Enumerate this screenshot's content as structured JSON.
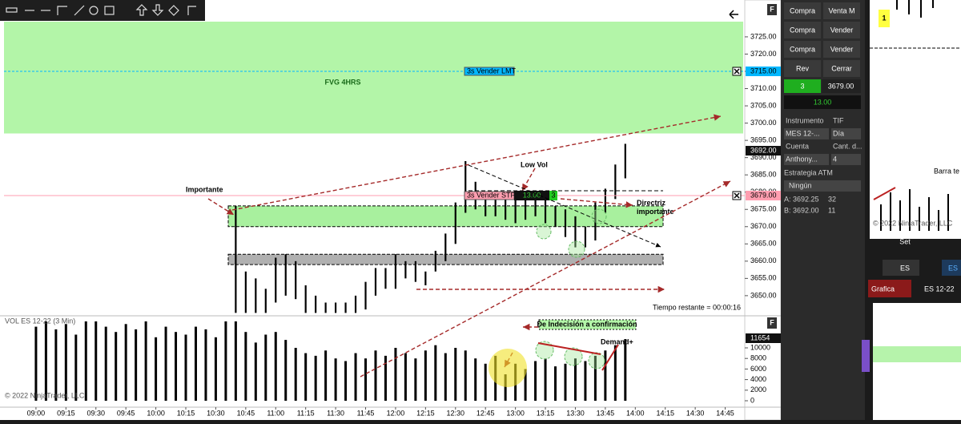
{
  "chart_data": [
    {
      "type": "range-bar",
      "x": [
        "10:40",
        "10:45",
        "10:50",
        "10:55",
        "11:00",
        "11:05",
        "11:10",
        "11:15",
        "11:20",
        "11:25",
        "11:30",
        "11:35",
        "11:40",
        "11:45",
        "11:50",
        "11:55",
        "12:00",
        "12:05",
        "12:10",
        "12:15",
        "12:20",
        "12:25",
        "12:30",
        "12:35",
        "12:40",
        "12:45",
        "12:50",
        "12:55",
        "13:00",
        "13:05",
        "13:10",
        "13:15",
        "13:20",
        "13:25",
        "13:30",
        "13:35",
        "13:40",
        "13:45",
        "13:50",
        "13:55"
      ],
      "high": [
        3676,
        3657,
        3655,
        3652,
        3661,
        3662,
        3660,
        3653,
        3650,
        3648,
        3648,
        3648,
        3650,
        3654,
        3658,
        3658,
        3662,
        3660,
        3660,
        3657,
        3663,
        3668,
        3677,
        3689,
        3683,
        3680,
        3679,
        3678,
        3679,
        3680,
        3679,
        3678,
        3676,
        3675,
        3673,
        3670,
        3677,
        3681,
        3688,
        3694
      ],
      "low": [
        3645,
        3645,
        3645,
        3645,
        3648,
        3650,
        3649,
        3645,
        3645,
        3645,
        3645,
        3645,
        3645,
        3646,
        3650,
        3652,
        3652,
        3655,
        3654,
        3653,
        3657,
        3660,
        3665,
        3674,
        3675,
        3673,
        3673,
        3672,
        3671,
        3672,
        3673,
        3671,
        3670,
        3667,
        3664,
        3664,
        3666,
        3674,
        3678,
        3684
      ],
      "color": "#000000",
      "ylim": [
        3644.4,
        3729.4
      ],
      "yticks": [
        {
          "value": 3725,
          "label": "3725.00"
        },
        {
          "value": 3720,
          "label": "3720.00"
        },
        {
          "value": 3715,
          "label": "3715.00"
        },
        {
          "value": 3710,
          "label": "3710.00"
        },
        {
          "value": 3705,
          "label": "3705.00"
        },
        {
          "value": 3700,
          "label": "3700.00"
        },
        {
          "value": 3695,
          "label": "3695.00"
        },
        {
          "value": 3690,
          "label": "3690.00"
        },
        {
          "value": 3685,
          "label": "3685.00"
        },
        {
          "value": 3680,
          "label": "3680.00"
        },
        {
          "value": 3675,
          "label": "3675.00"
        },
        {
          "value": 3670,
          "label": "3670.00"
        },
        {
          "value": 3665,
          "label": "3665.00"
        },
        {
          "value": 3660,
          "label": "3660.00"
        },
        {
          "value": 3655,
          "label": "3655.00"
        },
        {
          "value": 3650,
          "label": "3650.00"
        }
      ],
      "xlim": [
        "08:44",
        "14:54"
      ],
      "zones": [
        {
          "label": "FVG 4HRS",
          "from": 3697,
          "to": 3729.4,
          "color": "#b3f5a8"
        },
        {
          "from": 3670,
          "to": 3676,
          "color": "#a8f09e"
        },
        {
          "from": 3659,
          "to": 3662,
          "color": "#b0b0b0"
        }
      ],
      "orders": [
        {
          "label": "3s  Vender LMT",
          "value": 3715,
          "price_label": "3715.00",
          "color": "#00b7ff"
        },
        {
          "label": "3s  Vender STP",
          "value": 3679,
          "price_label": "3679.00",
          "qty": "13.00",
          "count": "3",
          "color": "#ff9eb0"
        }
      ],
      "last_price": {
        "value": 3692,
        "label": "3692.00"
      },
      "annotations": [
        "Importante",
        "Low Vol",
        "Directriz importante",
        "Tiempo restante = 00:00:16"
      ],
      "panel_label": "F"
    },
    {
      "type": "bar",
      "title": "VOL ES 12-22 (3 Min)",
      "x": [
        "09:00",
        "09:05",
        "09:10",
        "09:15",
        "09:20",
        "09:25",
        "09:30",
        "09:35",
        "09:40",
        "09:45",
        "09:50",
        "09:55",
        "10:00",
        "10:05",
        "10:10",
        "10:15",
        "10:20",
        "10:25",
        "10:30",
        "10:35",
        "10:40",
        "10:45",
        "10:50",
        "10:55",
        "11:00",
        "11:05",
        "11:10",
        "11:15",
        "11:20",
        "11:25",
        "11:30",
        "11:35",
        "11:40",
        "11:45",
        "11:50",
        "11:55",
        "12:00",
        "12:05",
        "12:10",
        "12:15",
        "12:20",
        "12:25",
        "12:30",
        "12:35",
        "12:40",
        "12:45",
        "12:50",
        "12:55",
        "13:00",
        "13:05",
        "13:10",
        "13:15",
        "13:20",
        "13:25",
        "13:30",
        "13:35",
        "13:40",
        "13:45",
        "13:50",
        "13:55"
      ],
      "values": [
        14000,
        15000,
        13500,
        14500,
        12500,
        15000,
        15000,
        14000,
        13000,
        14500,
        13500,
        15000,
        12000,
        14000,
        13000,
        12500,
        14000,
        13500,
        12000,
        15000,
        15000,
        13000,
        11000,
        12500,
        13000,
        11500,
        10000,
        9000,
        8500,
        9500,
        8000,
        7500,
        9000,
        8000,
        9500,
        8500,
        10000,
        9000,
        8000,
        9500,
        10500,
        9000,
        10000,
        9500,
        8000,
        7000,
        8500,
        5000,
        7000,
        6000,
        7500,
        8000,
        6500,
        7000,
        8000,
        7500,
        8500,
        9500,
        10500,
        11654
      ],
      "color": "#000000",
      "ylim": [
        0,
        15150
      ],
      "yticks": [
        0,
        2000,
        4000,
        6000,
        8000,
        10000
      ],
      "xlim": [
        "08:44",
        "14:54"
      ],
      "xticks": [
        {
          "value": "09:00",
          "label": "09:00"
        },
        {
          "value": "09:15",
          "label": "09:15"
        },
        {
          "value": "09:30",
          "label": "09:30"
        },
        {
          "value": "09:45",
          "label": "09:45"
        },
        {
          "value": "10:00",
          "label": "10:00"
        },
        {
          "value": "10:15",
          "label": "10:15"
        },
        {
          "value": "10:30",
          "label": "10:30"
        },
        {
          "value": "10:45",
          "label": "10:45"
        },
        {
          "value": "11:00",
          "label": "11:00"
        },
        {
          "value": "11:15",
          "label": "11:15"
        },
        {
          "value": "11:30",
          "label": "11:30"
        },
        {
          "value": "11:45",
          "label": "11:45"
        },
        {
          "value": "12:00",
          "label": "12:00"
        },
        {
          "value": "12:15",
          "label": "12:15"
        },
        {
          "value": "12:30",
          "label": "12:30"
        },
        {
          "value": "12:45",
          "label": "12:45"
        },
        {
          "value": "13:00",
          "label": "13:00"
        },
        {
          "value": "13:15",
          "label": "13:15"
        },
        {
          "value": "13:30",
          "label": "13:30"
        },
        {
          "value": "13:45",
          "label": "13:45"
        },
        {
          "value": "14:00",
          "label": "14:00"
        },
        {
          "value": "14:15",
          "label": "14:15"
        },
        {
          "value": "14:30",
          "label": "14:30"
        },
        {
          "value": "14:45",
          "label": "14:45"
        }
      ],
      "annotations": [
        "De Indecisión a confirmación",
        "Demand+"
      ],
      "copyright": "© 2022 NinjaTrader, LLC",
      "panel_label": "F"
    }
  ],
  "order_panel": {
    "buttons": [
      "Compra",
      "Venta M",
      "Compra",
      "Vender",
      "Compra",
      "Vender",
      "Rev",
      "Cerrar"
    ],
    "qty": "3",
    "price": "3679.00",
    "pnl": "13.00",
    "fields": [
      [
        "Instrumento",
        "TIF"
      ],
      [
        "MES 12-...",
        "Día"
      ],
      [
        "Cuenta",
        "Cant. d..."
      ],
      [
        "Anthony...",
        "4"
      ]
    ],
    "atm_label": "Estrategia ATM",
    "atm_value": "Ningún",
    "ask": [
      "A:",
      "3692.25",
      "32"
    ],
    "bid": [
      "B:",
      "3692.00",
      "11"
    ]
  },
  "side_chart": {
    "badge": "1",
    "label": "Barra te",
    "axis": "Set",
    "copyright": "© 2022 NinjaTrader, LLC",
    "tabs": [
      "ES",
      "ES"
    ],
    "tab2": [
      "Grafica",
      "ES 12-22"
    ]
  }
}
